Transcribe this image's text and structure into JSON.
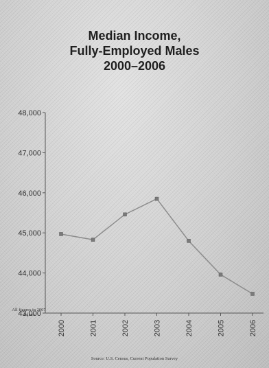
{
  "chart_data": {
    "type": "line",
    "title_lines": [
      "Median Income,",
      "Fully-Employed Males",
      "2000–2006"
    ],
    "x": [
      "2000",
      "2001",
      "2002",
      "2003",
      "2004",
      "2005",
      "2006"
    ],
    "series": [
      {
        "values": [
          44970,
          44830,
          45460,
          45850,
          44800,
          43960,
          43480
        ]
      }
    ],
    "yticks": [
      "43,000",
      "44,000",
      "45,000",
      "46,000",
      "47,000",
      "48,000"
    ],
    "ylim": [
      43000,
      48000
    ],
    "grid": false,
    "note": "All figures in 2007 dollars",
    "source": "Source: U.S. Census, Current Population Survey",
    "line_color": "#8c8c8c",
    "marker_color": "#7a7a7a"
  }
}
